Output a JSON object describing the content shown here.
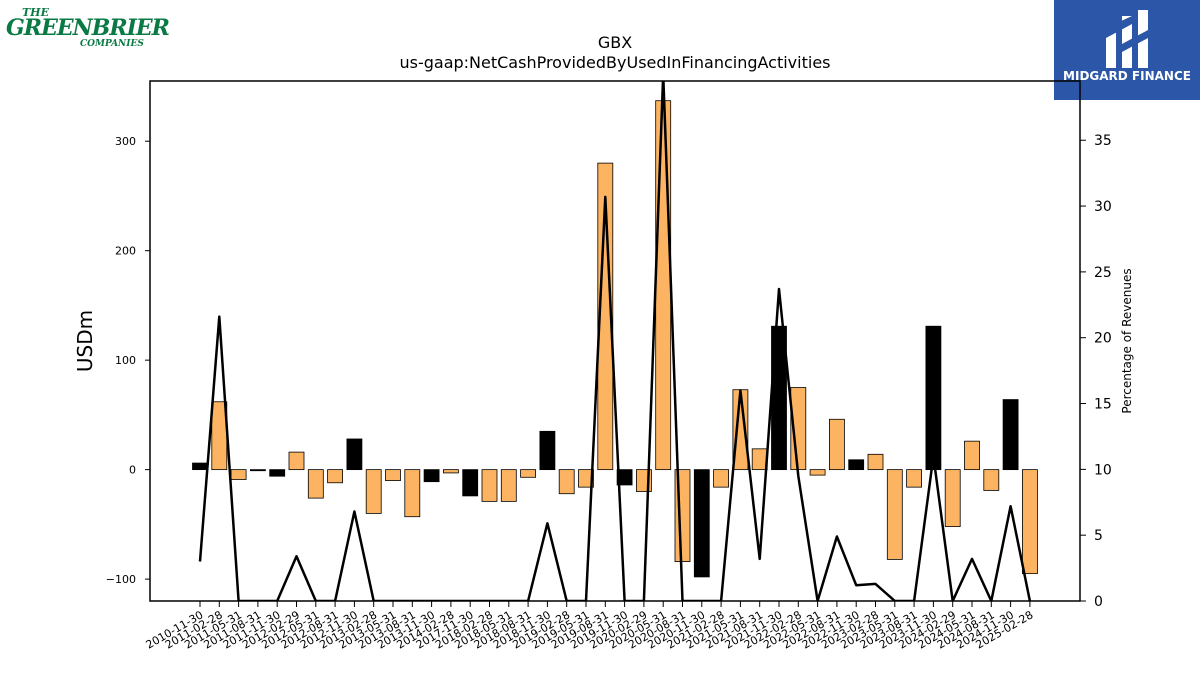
{
  "logos": {
    "left": {
      "the": "THE",
      "name": "GREENBRIER",
      "sub": "COMPANIES"
    },
    "right": {
      "brand": "MIDGARD FINANCE",
      "color": "#2c56a8"
    }
  },
  "chart_data": {
    "type": "bar",
    "title": "GBX",
    "subtitle": "us-gaap:NetCashProvidedByUsedInFinancingActivities",
    "ylabel": "USDm",
    "y2label": "Percentage of Revenues",
    "ylim": [
      -120,
      355
    ],
    "y2lim": [
      0,
      39.5
    ],
    "yticks": [
      -100,
      0,
      100,
      200,
      300
    ],
    "y2ticks": [
      0,
      5,
      10,
      15,
      20,
      25,
      30,
      35
    ],
    "bar_color_positive_trend": "#fdb462",
    "bar_color_negative_trend": "#000000",
    "line_color": "#000000",
    "categories": [
      "2010-11-30",
      "2011-02-28",
      "2011-05-31",
      "2011-08-31",
      "2011-11-30",
      "2012-02-29",
      "2012-05-31",
      "2012-08-31",
      "2012-11-30",
      "2013-02-28",
      "2013-05-31",
      "2013-08-31",
      "2013-11-30",
      "2014-02-28",
      "2017-11-30",
      "2018-02-28",
      "2018-05-31",
      "2018-08-31",
      "2018-11-30",
      "2019-02-28",
      "2019-05-31",
      "2019-08-31",
      "2019-11-30",
      "2020-02-29",
      "2020-05-31",
      "2020-08-31",
      "2020-11-30",
      "2021-02-28",
      "2021-05-31",
      "2021-08-31",
      "2021-11-30",
      "2022-02-28",
      "2022-05-31",
      "2022-08-31",
      "2022-11-30",
      "2023-02-28",
      "2023-05-31",
      "2023-08-31",
      "2023-11-30",
      "2024-02-29",
      "2024-05-31",
      "2024-08-31",
      "2024-11-30",
      "2025-02-28"
    ],
    "values": [
      6,
      62,
      -9,
      -1,
      -6,
      16,
      -26,
      -12,
      28,
      -40,
      -10,
      -43,
      -11,
      -3,
      -24,
      -29,
      -29,
      -7,
      35,
      -22,
      -16,
      280,
      -14,
      -20,
      337,
      -84,
      -98,
      -16,
      73,
      19,
      131,
      75,
      -5,
      46,
      9,
      14,
      -82,
      -16,
      131,
      -52,
      26,
      -19,
      64,
      -95
    ],
    "bar_dark": [
      true,
      false,
      false,
      true,
      true,
      false,
      false,
      false,
      true,
      false,
      false,
      false,
      true,
      false,
      true,
      false,
      false,
      false,
      true,
      false,
      false,
      false,
      true,
      false,
      false,
      false,
      true,
      false,
      false,
      false,
      true,
      false,
      false,
      false,
      true,
      false,
      false,
      false,
      true,
      false,
      false,
      false,
      true,
      false
    ],
    "pct_of_revenue": [
      3.0,
      21.6,
      0,
      0,
      0,
      3.4,
      0,
      0,
      6.8,
      0,
      0,
      0,
      0,
      0,
      0,
      0,
      0,
      0,
      5.9,
      0,
      0,
      30.7,
      0,
      0,
      40,
      0,
      0,
      0,
      16.0,
      3.2,
      23.7,
      9.5,
      0,
      4.9,
      1.2,
      1.3,
      0,
      0,
      11.0,
      0,
      3.2,
      0,
      7.2,
      0
    ]
  }
}
